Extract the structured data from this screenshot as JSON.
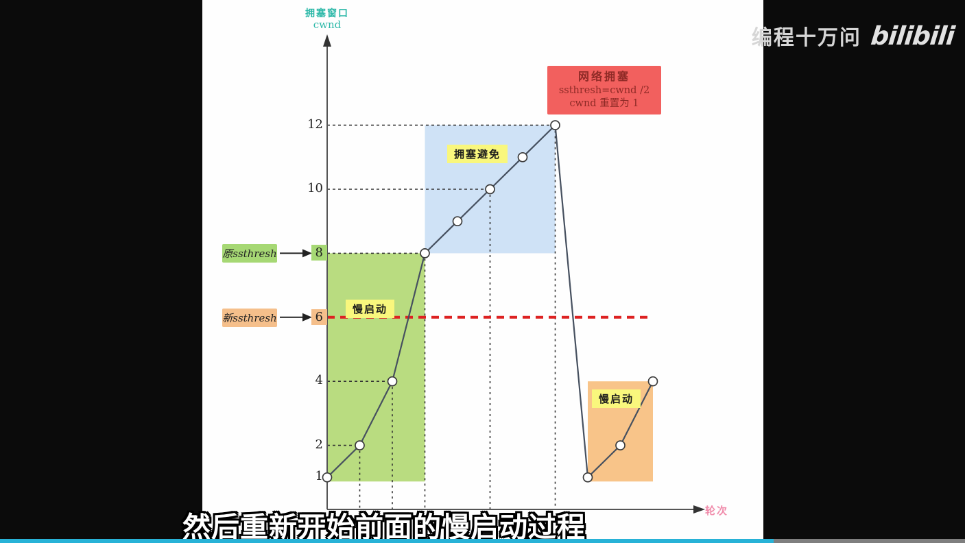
{
  "watermark": {
    "channel": "编程十万问",
    "logo_text": "bilibili"
  },
  "subtitle": "然后重新开始前面的慢启动过程",
  "player": {
    "progress_played_pct": 80.2,
    "played_color": "#28b2d7",
    "rest_color": "#7f7f7f"
  },
  "chart_data": {
    "type": "line",
    "title": "TCP congestion window over transmission rounds",
    "y_axis_label_cn": "拥塞窗口",
    "y_axis_label_en": "cwnd",
    "x_axis_label": "轮次",
    "y_ticks": [
      12,
      10,
      8,
      6,
      4,
      2,
      1
    ],
    "tick_highlights": {
      "8": "#a6d874",
      "6": "#f5bf8b"
    },
    "ylim": [
      0,
      13
    ],
    "grid": "guide-lines-only",
    "series": [
      {
        "name": "cwnd",
        "color": "#46505f",
        "points": [
          [
            0,
            1
          ],
          [
            1,
            2
          ],
          [
            2,
            4
          ],
          [
            3,
            8
          ],
          [
            4,
            9
          ],
          [
            5,
            10
          ],
          [
            6,
            11
          ],
          [
            7,
            12
          ],
          [
            8,
            1
          ],
          [
            9,
            2
          ],
          [
            10,
            4
          ]
        ]
      }
    ],
    "regions": [
      {
        "label": "慢启动",
        "color": "#b9dc80",
        "x0": 0,
        "x1": 3,
        "y0": 1,
        "y1": 8
      },
      {
        "label": "拥塞避免",
        "color": "#cfe2f6",
        "x0": 3,
        "x1": 7,
        "y0": 8,
        "y1": 12
      },
      {
        "label": "慢启动",
        "color": "#f8c489",
        "x0": 8,
        "x1": 10,
        "y0": 1,
        "y1": 4
      }
    ],
    "threshold_line": {
      "value": 6,
      "to_x": 10,
      "color": "#dd2222",
      "style": "dashed"
    },
    "guides_h": [
      {
        "y": 12,
        "to_x": 7
      },
      {
        "y": 10,
        "to_x": 5
      },
      {
        "y": 8,
        "to_x": 3
      },
      {
        "y": 4,
        "to_x": 2
      },
      {
        "y": 2,
        "to_x": 1
      }
    ],
    "guides_v": [
      {
        "x": 1,
        "from_y": 2
      },
      {
        "x": 2,
        "from_y": 4
      },
      {
        "x": 3,
        "from_y": 8
      },
      {
        "x": 5,
        "from_y": 10
      },
      {
        "x": 7,
        "from_y": 12
      }
    ],
    "annotations": {
      "old_ssthresh": {
        "label": "原ssthresh",
        "value": 8
      },
      "new_ssthresh": {
        "label": "新ssthresh",
        "value": 6
      },
      "congestion_event": {
        "lines": [
          "网络拥塞",
          "ssthresh=cwnd /2",
          "cwnd 重置为 1"
        ]
      },
      "phase_labels": [
        {
          "text": "慢启动"
        },
        {
          "text": "拥塞避免"
        },
        {
          "text": "慢启动"
        }
      ]
    }
  }
}
